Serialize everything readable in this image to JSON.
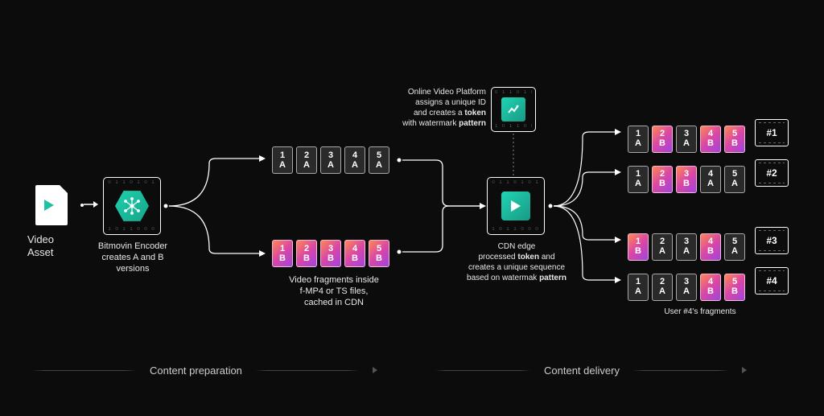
{
  "bg": "#0c0c0c",
  "colors": {
    "fragA_bg": "#2a2a2a",
    "fragB_grad": [
      "#ff884d",
      "#d946a6",
      "#a044e0"
    ],
    "teal_grad": [
      "#1ed2b0",
      "#16a388"
    ],
    "border": "#ffffff"
  },
  "asset": {
    "label": "Video\nAsset"
  },
  "encoder": {
    "caption": "Bitmovin Encoder\ncreates A and B\nversions"
  },
  "fragments_caption": "Video fragments inside\nf-MP4 or TS files,\ncached in CDN",
  "ovp": {
    "caption": "Online Video Platform\nassigns a unique ID\nand creates a token\nwith watermark pattern",
    "bold": [
      "token",
      "pattern"
    ]
  },
  "cdn": {
    "caption": "CDN edge\nprocessed token and\ncreates a unique sequence\nbased on watermak pattern",
    "bold": [
      "token",
      "pattern"
    ]
  },
  "rowA": [
    [
      "1",
      "A"
    ],
    [
      "2",
      "A"
    ],
    [
      "3",
      "A"
    ],
    [
      "4",
      "A"
    ],
    [
      "5",
      "A"
    ]
  ],
  "rowB": [
    [
      "1",
      "B"
    ],
    [
      "2",
      "B"
    ],
    [
      "3",
      "B"
    ],
    [
      "4",
      "B"
    ],
    [
      "5",
      "B"
    ]
  ],
  "users": {
    "rows": [
      [
        [
          "1",
          "A"
        ],
        [
          "2",
          "B"
        ],
        [
          "3",
          "A"
        ],
        [
          "4",
          "B"
        ],
        [
          "5",
          "B"
        ]
      ],
      [
        [
          "1",
          "A"
        ],
        [
          "2",
          "B"
        ],
        [
          "3",
          "B"
        ],
        [
          "4",
          "A"
        ],
        [
          "5",
          "A"
        ]
      ],
      [
        [
          "1",
          "B"
        ],
        [
          "2",
          "A"
        ],
        [
          "3",
          "A"
        ],
        [
          "4",
          "B"
        ],
        [
          "5",
          "A"
        ]
      ],
      [
        [
          "1",
          "A"
        ],
        [
          "2",
          "A"
        ],
        [
          "3",
          "A"
        ],
        [
          "4",
          "B"
        ],
        [
          "5",
          "B"
        ]
      ]
    ],
    "ids": [
      "#1",
      "#2",
      "#3",
      "#4"
    ],
    "caption": "User #4's fragments"
  },
  "phases": {
    "left": "Content preparation",
    "right": "Content delivery"
  }
}
